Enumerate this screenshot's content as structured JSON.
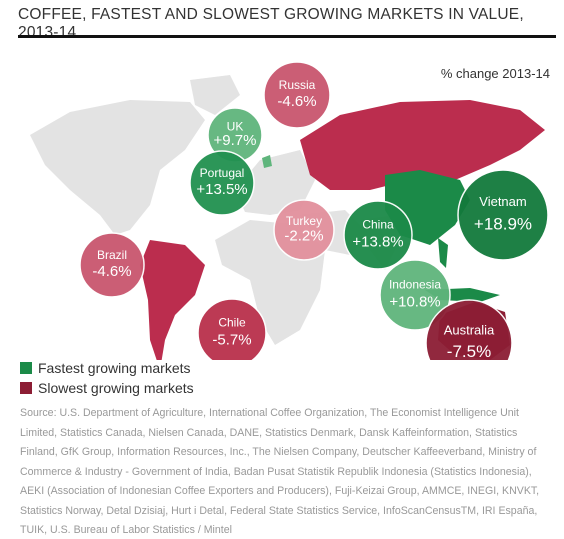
{
  "title": "COFFEE, FASTEST AND SLOWEST GROWING MARKETS IN VALUE, 2013-14",
  "subtitle": "% change 2013-14",
  "markets": [
    {
      "name": "Russia",
      "value": -4.6,
      "value_label": "-4.6%",
      "color": "#c9566e"
    },
    {
      "name": "UK",
      "value": 9.7,
      "value_label": "+9.7%",
      "color": "#5fb57c"
    },
    {
      "name": "Portugal",
      "value": 13.5,
      "value_label": "+13.5%",
      "color": "#219150"
    },
    {
      "name": "Turkey",
      "value": -2.2,
      "value_label": "-2.2%",
      "color": "#e2909d"
    },
    {
      "name": "Brazil",
      "value": -4.6,
      "value_label": "-4.6%",
      "color": "#c9566e"
    },
    {
      "name": "Chile",
      "value": -5.7,
      "value_label": "-5.7%",
      "color": "#b9304b"
    },
    {
      "name": "China",
      "value": 13.8,
      "value_label": "+13.8%",
      "color": "#1b8a48"
    },
    {
      "name": "Vietnam",
      "value": 18.9,
      "value_label": "+18.9%",
      "color": "#137a3c"
    },
    {
      "name": "Indonesia",
      "value": 10.8,
      "value_label": "+10.8%",
      "color": "#5fb57c"
    },
    {
      "name": "Australia",
      "value": -7.5,
      "value_label": "-7.5%",
      "color": "#8c1d34"
    }
  ],
  "legend": [
    {
      "label": "Fastest growing markets",
      "color": "#1b8a48"
    },
    {
      "label": "Slowest growing markets",
      "color": "#8c1d34"
    }
  ],
  "source": "Source: U.S. Department of Agriculture, International Coffee Organization, The Economist Intelligence Unit Limited, Statistics Canada, Nielsen Canada, DANE, Statistics Denmark, Dansk Kaffeinformation, Statistics Finland, GfK Group, Information Resources, Inc., The Nielsen Company, Deutscher Kaffeeverband, Ministry of Commerce & Industry - Government of India, Badan Pusat Statistik Republik Indonesia (Statistics Indonesia), AEKI (Association of Indonesian Coffee Exporters and Producers), Fuji-Keizai Group, AMMCE, INEGI, KNVKT, Statistics Norway, Detal Dzisiaj, Hurt i Detal, Federal State Statistics Service, InfoScanCensusTM, IRI España, TUIK, U.S. Bureau of Labor Statistics / Mintel"
}
